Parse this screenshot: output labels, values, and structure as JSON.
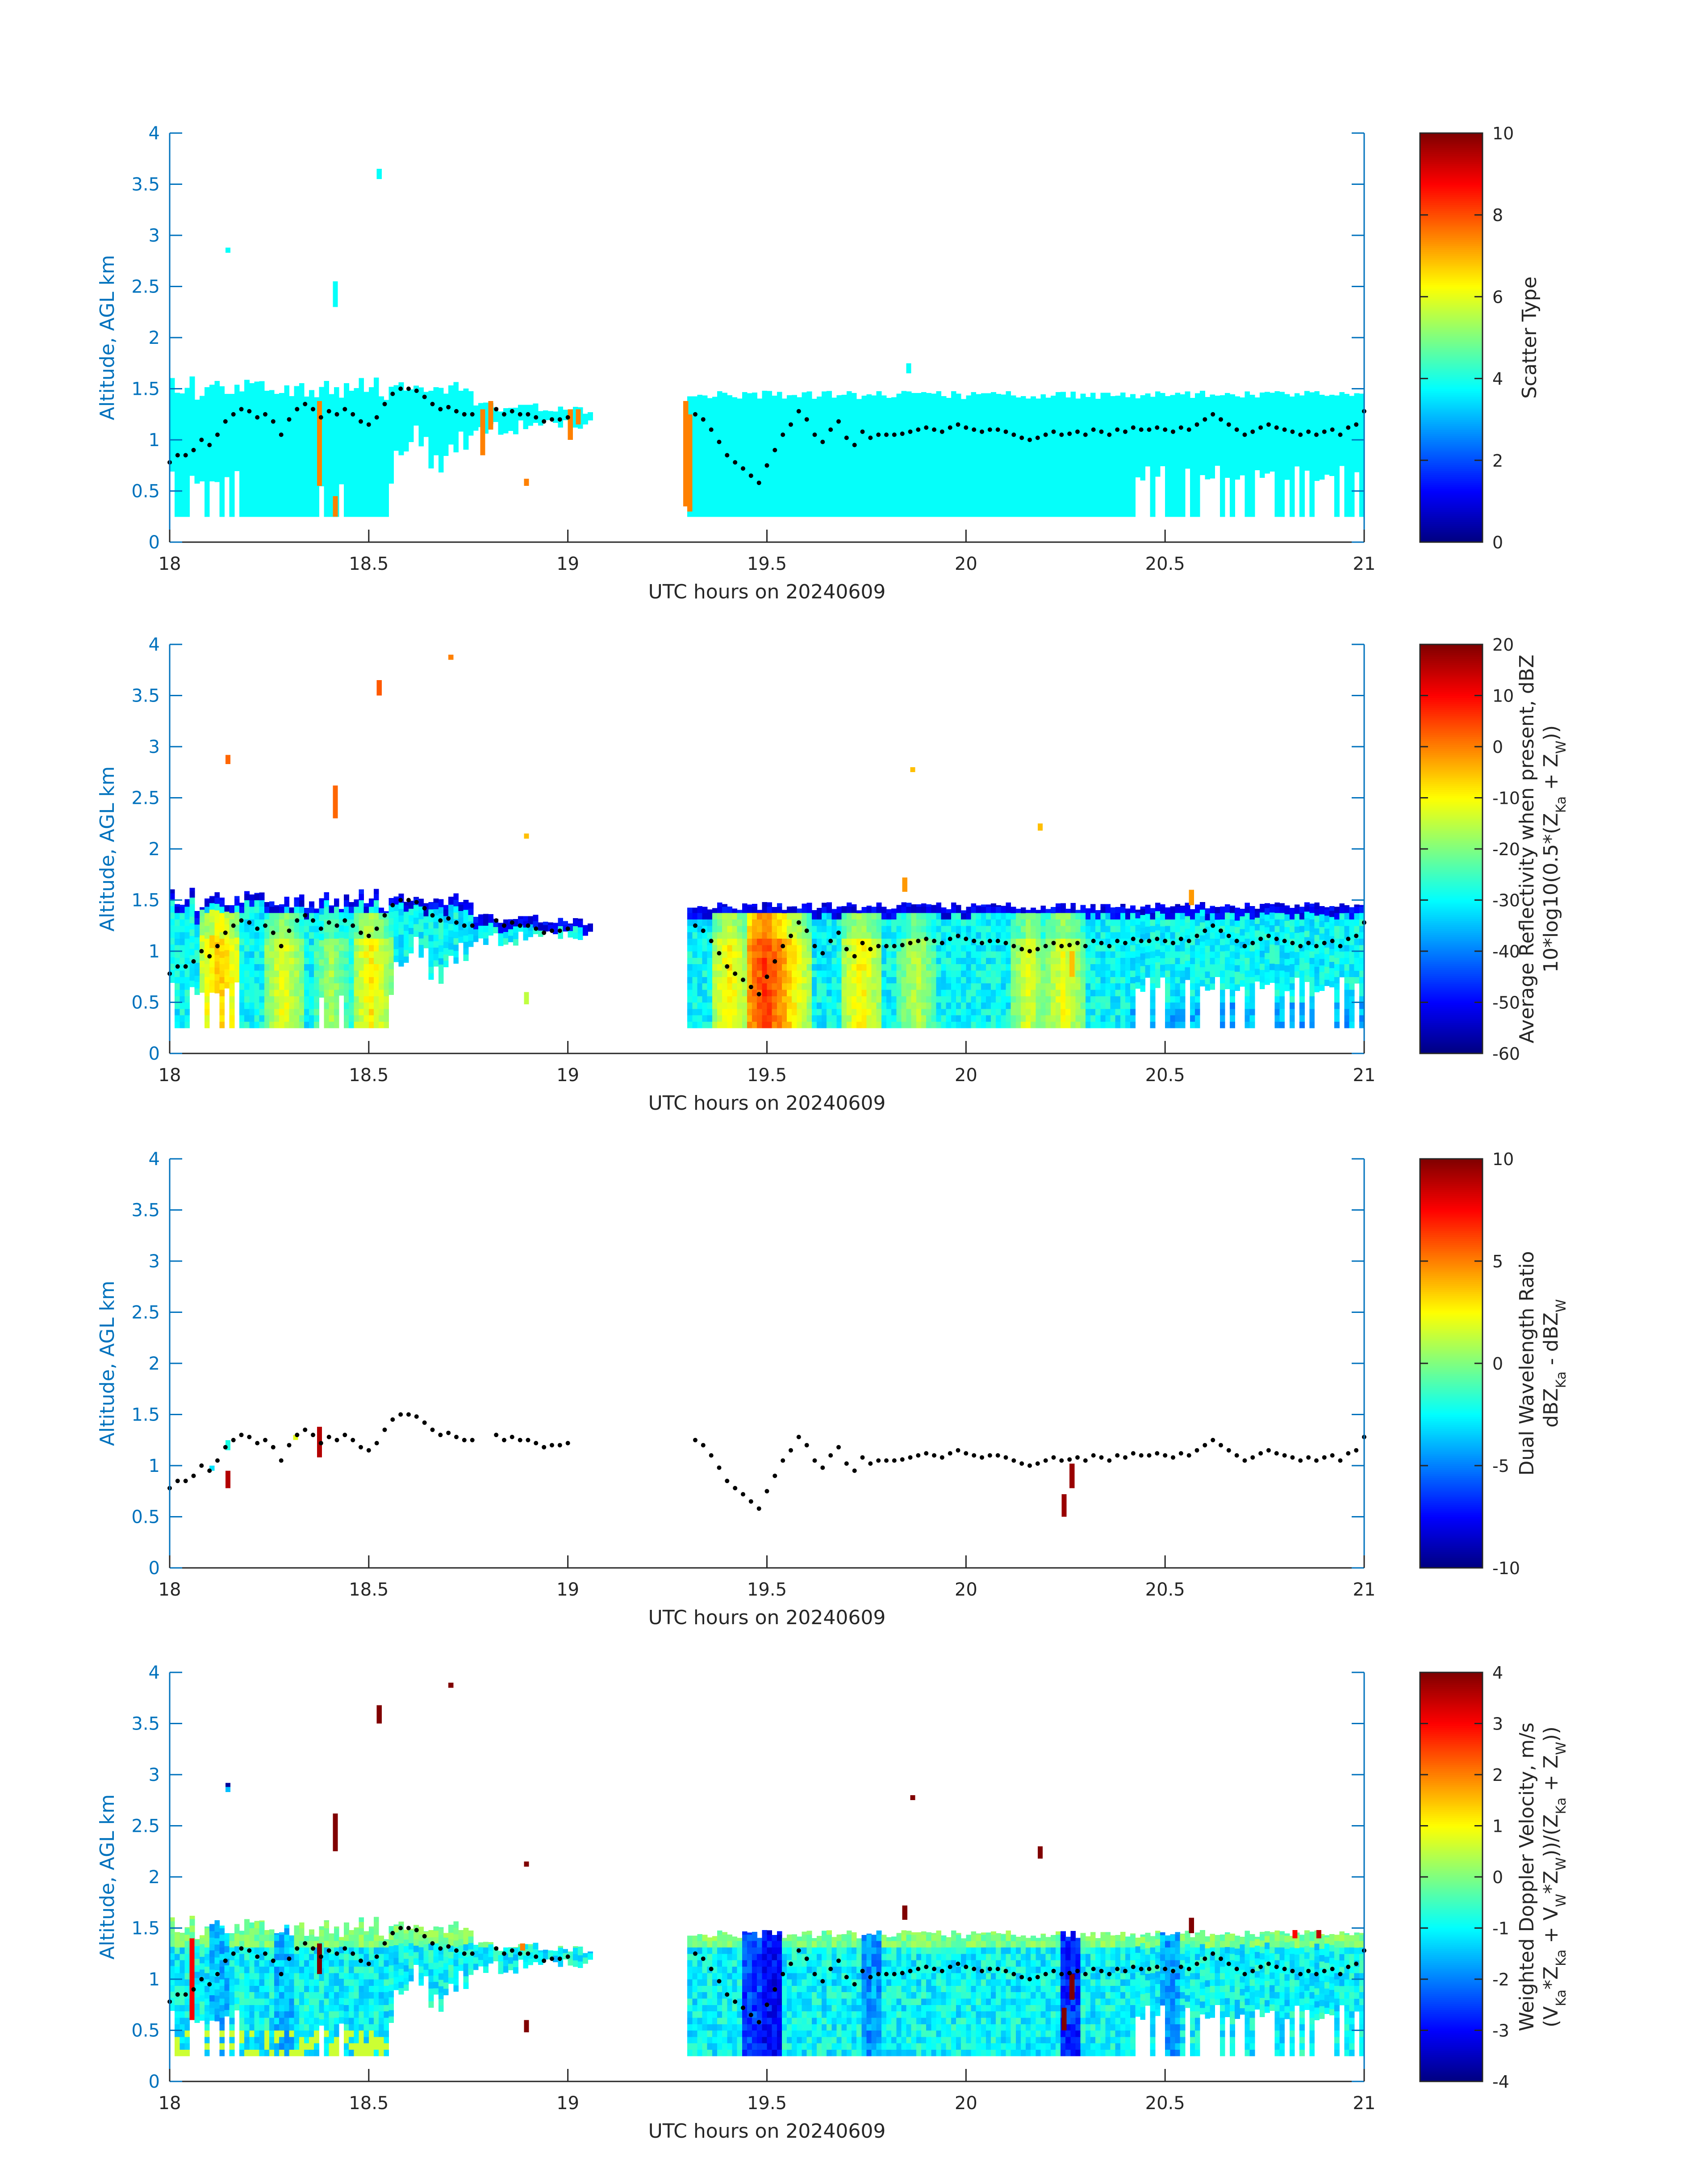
{
  "figure": {
    "colors": {
      "axis_blue": "#0072bd",
      "axis_black": "#262626",
      "background": "#ffffff",
      "marker": "#000000"
    }
  },
  "chart_data": [
    {
      "type": "heatmap",
      "name": "scatter-type",
      "xlabel": "UTC hours on 20240609",
      "ylabel": "Altitude, AGL km",
      "xlim": [
        18,
        21
      ],
      "ylim": [
        0,
        4
      ],
      "xticks": [
        "18",
        "18.5",
        "19",
        "19.5",
        "20",
        "20.5",
        "21"
      ],
      "yticks": [
        "0",
        "0.5",
        "1",
        "1.5",
        "2",
        "2.5",
        "3",
        "3.5",
        "4"
      ],
      "colorbar": {
        "label_lines": [
          "Scatter Type"
        ],
        "clim": [
          0,
          10
        ],
        "ticks": [
          "0",
          "2",
          "4",
          "6",
          "8",
          "10"
        ]
      },
      "field": "scatter",
      "overlay": "cloud-base-markers"
    },
    {
      "type": "heatmap",
      "name": "reflectivity",
      "xlabel": "UTC hours on 20240609",
      "ylabel": "Altitude, AGL km",
      "xlim": [
        18,
        21
      ],
      "ylim": [
        0,
        4
      ],
      "xticks": [
        "18",
        "18.5",
        "19",
        "19.5",
        "20",
        "20.5",
        "21"
      ],
      "yticks": [
        "0",
        "0.5",
        "1",
        "1.5",
        "2",
        "2.5",
        "3",
        "3.5",
        "4"
      ],
      "colorbar": {
        "label_lines": [
          "Average Reflectivity when present, dBZ",
          "10*log10(0.5*(Z",
          "Ka",
          " + Z",
          "W",
          "))"
        ],
        "clim": [
          -60,
          20
        ],
        "ticks": [
          "-60",
          "-50",
          "-40",
          "-30",
          "-20",
          "-10",
          "0",
          "10",
          "20"
        ]
      },
      "field": "reflectivity",
      "overlay": "cloud-base-markers"
    },
    {
      "type": "heatmap",
      "name": "dwr",
      "xlabel": "UTC hours on 20240609",
      "ylabel": "Altitude, AGL km",
      "xlim": [
        18,
        21
      ],
      "ylim": [
        0,
        4
      ],
      "xticks": [
        "18",
        "18.5",
        "19",
        "19.5",
        "20",
        "20.5",
        "21"
      ],
      "yticks": [
        "0",
        "0.5",
        "1",
        "1.5",
        "2",
        "2.5",
        "3",
        "3.5",
        "4"
      ],
      "colorbar": {
        "label_lines": [
          "Dual Wavelength Ratio",
          "dBZ",
          "Ka",
          " - dBZ",
          "W"
        ],
        "clim": [
          -10,
          10
        ],
        "ticks": [
          "-10",
          "-5",
          "0",
          "5",
          "10"
        ]
      },
      "field": "dwr",
      "overlay": "cloud-base-markers"
    },
    {
      "type": "heatmap",
      "name": "doppler",
      "xlabel": "UTC hours on 20240609",
      "ylabel": "Altitude, AGL km",
      "xlim": [
        18,
        21
      ],
      "ylim": [
        0,
        4
      ],
      "xticks": [
        "18",
        "18.5",
        "19",
        "19.5",
        "20",
        "20.5",
        "21"
      ],
      "yticks": [
        "0",
        "0.5",
        "1",
        "1.5",
        "2",
        "2.5",
        "3",
        "3.5",
        "4"
      ],
      "colorbar": {
        "label_lines": [
          "Weighted Doppler Velocity, m/s",
          "(V",
          "Ka",
          "*Z",
          "Ka",
          " + V",
          "W",
          "*Z",
          "W",
          "))/(Z",
          "Ka",
          " + Z",
          "W",
          "))"
        ],
        "clim": [
          -4,
          4
        ],
        "ticks": [
          "-4",
          "-3",
          "-2",
          "-1",
          "0",
          "1",
          "2",
          "3",
          "4"
        ]
      },
      "field": "doppler",
      "overlay": "cloud-base-markers"
    }
  ],
  "cloud_base_markers": {
    "description_units": "x: UTC hours, y: km",
    "points": [
      [
        18.0,
        0.78
      ],
      [
        18.02,
        0.85
      ],
      [
        18.04,
        0.85
      ],
      [
        18.06,
        0.9
      ],
      [
        18.08,
        1.0
      ],
      [
        18.1,
        0.95
      ],
      [
        18.12,
        1.05
      ],
      [
        18.14,
        1.18
      ],
      [
        18.16,
        1.25
      ],
      [
        18.18,
        1.3
      ],
      [
        18.2,
        1.28
      ],
      [
        18.22,
        1.22
      ],
      [
        18.24,
        1.25
      ],
      [
        18.26,
        1.18
      ],
      [
        18.28,
        1.05
      ],
      [
        18.3,
        1.2
      ],
      [
        18.32,
        1.3
      ],
      [
        18.34,
        1.35
      ],
      [
        18.36,
        1.3
      ],
      [
        18.38,
        1.22
      ],
      [
        18.4,
        1.28
      ],
      [
        18.42,
        1.25
      ],
      [
        18.44,
        1.3
      ],
      [
        18.46,
        1.25
      ],
      [
        18.48,
        1.18
      ],
      [
        18.5,
        1.15
      ],
      [
        18.52,
        1.22
      ],
      [
        18.54,
        1.35
      ],
      [
        18.56,
        1.45
      ],
      [
        18.58,
        1.5
      ],
      [
        18.6,
        1.5
      ],
      [
        18.62,
        1.48
      ],
      [
        18.64,
        1.42
      ],
      [
        18.66,
        1.35
      ],
      [
        18.68,
        1.3
      ],
      [
        18.7,
        1.32
      ],
      [
        18.72,
        1.28
      ],
      [
        18.74,
        1.25
      ],
      [
        18.76,
        1.25
      ],
      [
        18.82,
        1.3
      ],
      [
        18.84,
        1.25
      ],
      [
        18.86,
        1.28
      ],
      [
        18.88,
        1.25
      ],
      [
        18.9,
        1.25
      ],
      [
        18.92,
        1.22
      ],
      [
        18.94,
        1.18
      ],
      [
        18.96,
        1.2
      ],
      [
        18.98,
        1.2
      ],
      [
        19.0,
        1.22
      ],
      [
        19.32,
        1.25
      ],
      [
        19.34,
        1.2
      ],
      [
        19.36,
        1.1
      ],
      [
        19.38,
        0.98
      ],
      [
        19.4,
        0.85
      ],
      [
        19.42,
        0.78
      ],
      [
        19.44,
        0.72
      ],
      [
        19.46,
        0.65
      ],
      [
        19.48,
        0.58
      ],
      [
        19.5,
        0.75
      ],
      [
        19.52,
        0.9
      ],
      [
        19.54,
        1.05
      ],
      [
        19.56,
        1.15
      ],
      [
        19.58,
        1.28
      ],
      [
        19.6,
        1.2
      ],
      [
        19.62,
        1.05
      ],
      [
        19.64,
        0.98
      ],
      [
        19.66,
        1.1
      ],
      [
        19.68,
        1.18
      ],
      [
        19.7,
        1.02
      ],
      [
        19.72,
        0.95
      ],
      [
        19.74,
        1.08
      ],
      [
        19.76,
        1.02
      ],
      [
        19.78,
        1.05
      ],
      [
        19.8,
        1.05
      ],
      [
        19.82,
        1.05
      ],
      [
        19.84,
        1.06
      ],
      [
        19.86,
        1.08
      ],
      [
        19.88,
        1.1
      ],
      [
        19.9,
        1.12
      ],
      [
        19.92,
        1.1
      ],
      [
        19.94,
        1.08
      ],
      [
        19.96,
        1.12
      ],
      [
        19.98,
        1.15
      ],
      [
        20.0,
        1.12
      ],
      [
        20.02,
        1.1
      ],
      [
        20.04,
        1.08
      ],
      [
        20.06,
        1.1
      ],
      [
        20.08,
        1.1
      ],
      [
        20.1,
        1.08
      ],
      [
        20.12,
        1.05
      ],
      [
        20.14,
        1.02
      ],
      [
        20.16,
        1.0
      ],
      [
        20.18,
        1.02
      ],
      [
        20.2,
        1.05
      ],
      [
        20.22,
        1.08
      ],
      [
        20.24,
        1.05
      ],
      [
        20.26,
        1.06
      ],
      [
        20.28,
        1.08
      ],
      [
        20.3,
        1.05
      ],
      [
        20.32,
        1.1
      ],
      [
        20.34,
        1.08
      ],
      [
        20.36,
        1.05
      ],
      [
        20.38,
        1.1
      ],
      [
        20.4,
        1.08
      ],
      [
        20.42,
        1.12
      ],
      [
        20.44,
        1.1
      ],
      [
        20.46,
        1.1
      ],
      [
        20.48,
        1.12
      ],
      [
        20.5,
        1.1
      ],
      [
        20.52,
        1.08
      ],
      [
        20.54,
        1.12
      ],
      [
        20.56,
        1.1
      ],
      [
        20.58,
        1.15
      ],
      [
        20.6,
        1.2
      ],
      [
        20.62,
        1.25
      ],
      [
        20.64,
        1.2
      ],
      [
        20.66,
        1.15
      ],
      [
        20.68,
        1.1
      ],
      [
        20.7,
        1.05
      ],
      [
        20.72,
        1.08
      ],
      [
        20.74,
        1.12
      ],
      [
        20.76,
        1.15
      ],
      [
        20.78,
        1.12
      ],
      [
        20.8,
        1.1
      ],
      [
        20.82,
        1.08
      ],
      [
        20.84,
        1.05
      ],
      [
        20.86,
        1.08
      ],
      [
        20.88,
        1.05
      ],
      [
        20.9,
        1.08
      ],
      [
        20.92,
        1.1
      ],
      [
        20.94,
        1.05
      ],
      [
        20.96,
        1.12
      ],
      [
        20.98,
        1.15
      ],
      [
        21.0,
        1.28
      ]
    ]
  },
  "isolated_returns": {
    "description_units": "x: UTC hours, y0/y1: km, v: field values",
    "scatter": [
      [
        18.14,
        2.83,
        2.88,
        3.8
      ],
      [
        18.41,
        2.3,
        2.55,
        3.8
      ],
      [
        18.52,
        3.55,
        3.65,
        3.8
      ],
      [
        19.85,
        1.65,
        1.75,
        3.8
      ],
      [
        18.37,
        0.55,
        1.38,
        7.5
      ],
      [
        18.41,
        0.25,
        0.45,
        7.5
      ],
      [
        18.78,
        0.85,
        1.3,
        7.5
      ],
      [
        18.8,
        1.1,
        1.38,
        7.5
      ],
      [
        18.89,
        0.55,
        0.62,
        7.5
      ],
      [
        19.0,
        1.0,
        1.3,
        7.5
      ],
      [
        19.02,
        1.15,
        1.3,
        7.5
      ],
      [
        19.29,
        0.35,
        1.38,
        7.5
      ],
      [
        19.3,
        0.3,
        1.25,
        7.5
      ]
    ],
    "reflectivity": [
      [
        18.14,
        2.83,
        2.92,
        2
      ],
      [
        18.41,
        2.3,
        2.62,
        2
      ],
      [
        18.52,
        3.5,
        3.65,
        3
      ],
      [
        18.7,
        3.85,
        3.9,
        0
      ],
      [
        18.89,
        2.1,
        2.15,
        -5
      ],
      [
        19.84,
        1.58,
        1.72,
        -2
      ],
      [
        19.86,
        2.75,
        2.8,
        -5
      ],
      [
        20.18,
        2.18,
        2.25,
        -5
      ],
      [
        20.56,
        1.45,
        1.6,
        -2
      ],
      [
        18.89,
        0.48,
        0.6,
        -15
      ],
      [
        20.26,
        0.75,
        1.0,
        -5
      ]
    ],
    "dwr": [
      [
        18.14,
        0.78,
        0.95,
        9
      ],
      [
        18.14,
        1.15,
        1.25,
        -2
      ],
      [
        18.37,
        1.08,
        1.38,
        9
      ],
      [
        18.31,
        1.25,
        1.3,
        2
      ],
      [
        18.1,
        0.95,
        1.0,
        -3
      ],
      [
        20.24,
        0.5,
        0.72,
        9.5
      ],
      [
        20.26,
        0.78,
        1.02,
        9.5
      ]
    ],
    "doppler": [
      [
        18.14,
        2.83,
        2.88,
        -1.5
      ],
      [
        18.14,
        2.88,
        2.92,
        -3.8
      ],
      [
        18.41,
        2.25,
        2.62,
        4
      ],
      [
        18.52,
        3.5,
        3.68,
        4
      ],
      [
        18.7,
        3.85,
        3.9,
        4
      ],
      [
        18.89,
        2.1,
        2.15,
        4
      ],
      [
        19.84,
        1.58,
        1.72,
        4
      ],
      [
        19.86,
        2.75,
        2.8,
        4
      ],
      [
        20.18,
        2.18,
        2.3,
        4
      ],
      [
        20.56,
        1.45,
        1.6,
        4
      ],
      [
        18.89,
        0.48,
        0.6,
        4
      ],
      [
        18.37,
        1.05,
        1.35,
        4
      ],
      [
        18.05,
        0.6,
        1.4,
        3
      ],
      [
        20.24,
        0.5,
        0.72,
        4
      ],
      [
        20.26,
        0.8,
        1.05,
        4
      ],
      [
        18.88,
        1.28,
        1.35,
        2
      ],
      [
        20.82,
        1.4,
        1.48,
        3
      ],
      [
        20.88,
        1.4,
        1.48,
        3.5
      ]
    ]
  }
}
